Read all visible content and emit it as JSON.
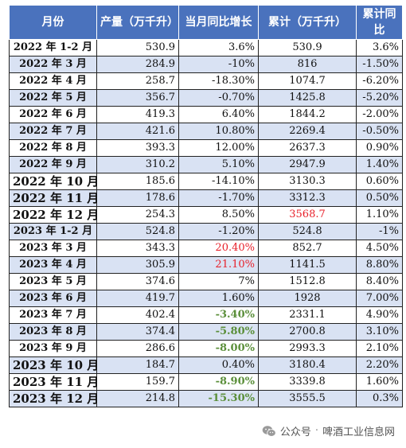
{
  "headers": [
    "月份",
    "产量（万千升）",
    "当月同比增长",
    "累计（万千升）",
    "累计同比"
  ],
  "rows": [
    {
      "month": "2022 年 1-2 月",
      "production": "530.9",
      "monthly_yoy": "3.6%",
      "cumulative": "530.9",
      "cumulative_yoy": "3.6%"
    },
    {
      "month": "2022 年 3 月",
      "production": "284.9",
      "monthly_yoy": "-10%",
      "cumulative": "816",
      "cumulative_yoy": "-1.50%"
    },
    {
      "month": "2022 年 4 月",
      "production": "258.7",
      "monthly_yoy": "-18.30%",
      "cumulative": "1074.7",
      "cumulative_yoy": "-6.20%"
    },
    {
      "month": "2022 年 5 月",
      "production": "356.7",
      "monthly_yoy": "-0.70%",
      "cumulative": "1425.8",
      "cumulative_yoy": "-5.20%"
    },
    {
      "month": "2022 年 6 月",
      "production": "419.3",
      "monthly_yoy": "6.40%",
      "cumulative": "1844.2",
      "cumulative_yoy": "-2.00%"
    },
    {
      "month": "2022 年 7 月",
      "production": "421.6",
      "monthly_yoy": "10.80%",
      "cumulative": "2269.4",
      "cumulative_yoy": "-0.50%"
    },
    {
      "month": "2022 年 8 月",
      "production": "393.3",
      "monthly_yoy": "12.00%",
      "cumulative": "2637.3",
      "cumulative_yoy": "0.90%"
    },
    {
      "month": "2022 年 9 月",
      "production": "310.2",
      "monthly_yoy": "5.10%",
      "cumulative": "2947.9",
      "cumulative_yoy": "1.40%"
    },
    {
      "month": "2022 年 10 月",
      "production": "185.6",
      "monthly_yoy": "-14.10%",
      "cumulative": "3130.3",
      "cumulative_yoy": "0.60%"
    },
    {
      "month": "2022 年 11 月",
      "production": "178.6",
      "monthly_yoy": "-1.70%",
      "cumulative": "3312.3",
      "cumulative_yoy": "0.50%"
    },
    {
      "month": "2022 年 12 月",
      "production": "254.3",
      "monthly_yoy": "8.50%",
      "cumulative": "3568.7",
      "cumulative_yoy": "1.10%"
    },
    {
      "month": "2023 年 1-2 月",
      "production": "524.8",
      "monthly_yoy": "-1.20%",
      "cumulative": "524.8",
      "cumulative_yoy": "-1%"
    },
    {
      "month": "2023 年 3 月",
      "production": "343.3",
      "monthly_yoy": "20.40%",
      "cumulative": "852.7",
      "cumulative_yoy": "4.50%"
    },
    {
      "month": "2023 年 4 月",
      "production": "305.9",
      "monthly_yoy": "21.10%",
      "cumulative": "1141.5",
      "cumulative_yoy": "8.80%"
    },
    {
      "month": "2023 年 5 月",
      "production": "374.6",
      "monthly_yoy": "7%",
      "cumulative": "1512.8",
      "cumulative_yoy": "8.40%"
    },
    {
      "month": "2023 年 6 月",
      "production": "419.7",
      "monthly_yoy": "1.60%",
      "cumulative": "1928",
      "cumulative_yoy": "7.00%"
    },
    {
      "month": "2023 年 7 月",
      "production": "402.4",
      "monthly_yoy": "-3.40%",
      "cumulative": "2331.1",
      "cumulative_yoy": "4.90%"
    },
    {
      "month": "2023 年 8 月",
      "production": "374.4",
      "monthly_yoy": "-5.80%",
      "cumulative": "2700.8",
      "cumulative_yoy": "3.10%"
    },
    {
      "month": "2023 年 9 月",
      "production": "286.6",
      "monthly_yoy": "-8.00%",
      "cumulative": "2993.3",
      "cumulative_yoy": "2.10%"
    },
    {
      "month": "2023 年 10 月",
      "production": "184.7",
      "monthly_yoy": "0.40%",
      "cumulative": "3180.4",
      "cumulative_yoy": "2.20%"
    },
    {
      "month": "2023 年 11 月",
      "production": "159.7",
      "monthly_yoy": "-8.90%",
      "cumulative": "3339.8",
      "cumulative_yoy": "1.60%"
    },
    {
      "month": "2023 年 12 月",
      "production": "214.8",
      "monthly_yoy": "-15.30%",
      "cumulative": "3555.5",
      "cumulative_yoy": "0.3%"
    }
  ],
  "footer": {
    "source_prefix": "公众号",
    "separator": "·",
    "account_name": "啤酒工业信息网"
  },
  "colors": {
    "header_bg": "#4a72bd",
    "stripe_bg": "#d9e2f3",
    "highlight_red": "#e8202a",
    "highlight_green": "#5b8f3a"
  }
}
